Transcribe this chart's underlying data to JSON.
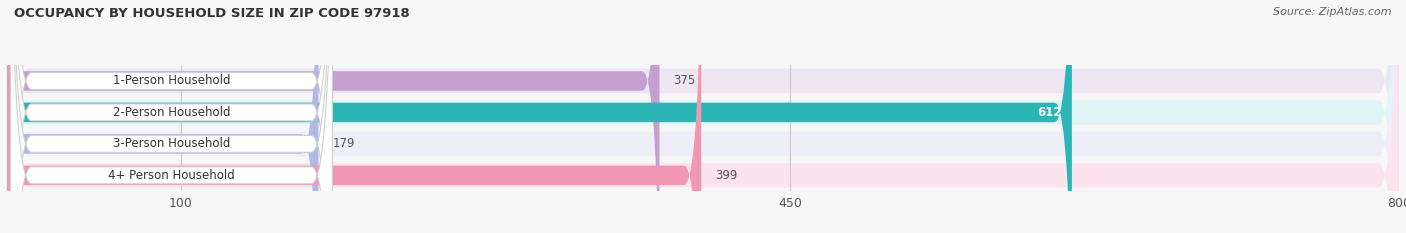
{
  "title": "OCCUPANCY BY HOUSEHOLD SIZE IN ZIP CODE 97918",
  "source": "Source: ZipAtlas.com",
  "categories": [
    "1-Person Household",
    "2-Person Household",
    "3-Person Household",
    "4+ Person Household"
  ],
  "values": [
    375,
    612,
    179,
    399
  ],
  "bar_colors": [
    "#c4a0d0",
    "#2cb5b5",
    "#b0b8e8",
    "#f097b4"
  ],
  "bar_bg_colors": [
    "#ede5f2",
    "#e0f5f5",
    "#eeeef8",
    "#fce4ef"
  ],
  "label_colors": [
    "#444444",
    "#ffffff",
    "#444444",
    "#444444"
  ],
  "value_inside": [
    false,
    true,
    false,
    false
  ],
  "xlim": [
    0,
    800
  ],
  "xticks": [
    100,
    450,
    800
  ],
  "figsize": [
    14.06,
    2.33
  ],
  "dpi": 100,
  "bg_color": "#f7f7f7",
  "bar_row_bg": "#f0f0f0"
}
